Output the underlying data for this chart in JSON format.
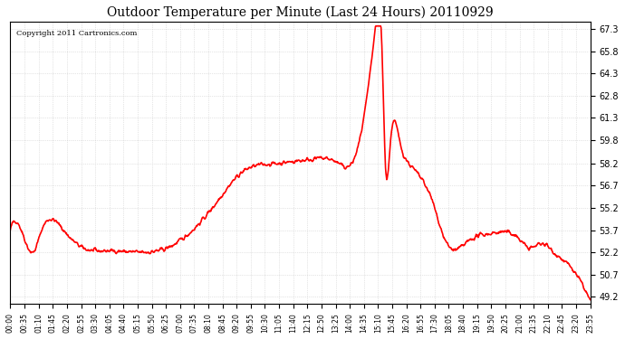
{
  "title": "Outdoor Temperature per Minute (Last 24 Hours) 20110929",
  "copyright_text": "Copyright 2011 Cartronics.com",
  "background_color": "#ffffff",
  "plot_bg_color": "#ffffff",
  "line_color": "red",
  "line_width": 1.2,
  "yticks": [
    49.2,
    50.7,
    52.2,
    53.7,
    55.2,
    56.7,
    58.2,
    59.8,
    61.3,
    62.8,
    64.3,
    65.8,
    67.3
  ],
  "ylim": [
    48.7,
    67.8
  ],
  "xtick_labels": [
    "00:00",
    "00:35",
    "01:10",
    "01:45",
    "02:20",
    "02:55",
    "03:30",
    "04:05",
    "04:40",
    "05:15",
    "05:50",
    "06:25",
    "07:00",
    "07:35",
    "08:10",
    "08:45",
    "09:20",
    "09:55",
    "10:30",
    "11:05",
    "11:40",
    "12:15",
    "12:50",
    "13:25",
    "14:00",
    "14:35",
    "15:10",
    "15:45",
    "16:20",
    "16:55",
    "17:30",
    "18:05",
    "18:40",
    "19:15",
    "19:50",
    "20:25",
    "21:00",
    "21:35",
    "22:10",
    "22:45",
    "23:20",
    "23:55"
  ],
  "grid_color": "#cccccc",
  "grid_style": "dotted"
}
